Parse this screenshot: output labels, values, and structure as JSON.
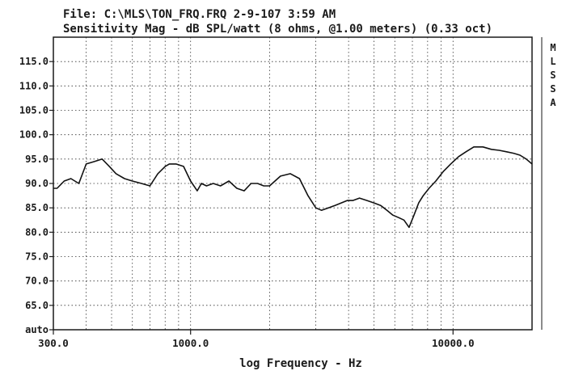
{
  "header": {
    "file_line": "File: C:\\MLS\\TON_FRQ.FRQ 2-9-107 3:59 AM",
    "title_line": "Sensitivity Mag - dB SPL/watt (8 ohms, @1.00 meters) (0.33 oct)"
  },
  "side_badge": [
    "M",
    "L",
    "S",
    "S",
    "A"
  ],
  "chart_data": {
    "type": "line",
    "title": "Sensitivity Mag - dB SPL/watt (8 ohms, @1.00 meters) (0.33 oct)",
    "xlabel": "log Frequency - Hz",
    "ylabel": "",
    "x_scale": "log",
    "xlim": [
      300,
      20000
    ],
    "ylim": [
      60,
      120
    ],
    "grid": true,
    "x_ticks": [
      {
        "value": 300,
        "label": "300.0"
      },
      {
        "value": 1000,
        "label": "1000.0"
      },
      {
        "value": 10000,
        "label": "10000.0"
      }
    ],
    "y_ticks": [
      {
        "value": 60,
        "label": "auto"
      },
      {
        "value": 65,
        "label": "65.0"
      },
      {
        "value": 70,
        "label": "70.0"
      },
      {
        "value": 75,
        "label": "75.0"
      },
      {
        "value": 80,
        "label": "80.0"
      },
      {
        "value": 85,
        "label": "85.0"
      },
      {
        "value": 90,
        "label": "90.0"
      },
      {
        "value": 95,
        "label": "95.0"
      },
      {
        "value": 100,
        "label": "100.0"
      },
      {
        "value": 105,
        "label": "105.0"
      },
      {
        "value": 110,
        "label": "110.0"
      },
      {
        "value": 115,
        "label": "115.0"
      }
    ],
    "series": [
      {
        "x": [
          300,
          310,
          330,
          350,
          375,
          400,
          430,
          460,
          490,
          520,
          560,
          600,
          650,
          700,
          750,
          800,
          830,
          880,
          940,
          1000,
          1060,
          1100,
          1150,
          1220,
          1300,
          1400,
          1500,
          1600,
          1700,
          1800,
          1900,
          2000,
          2200,
          2400,
          2600,
          2800,
          3000,
          3150,
          3350,
          3550,
          3750,
          3950,
          4150,
          4400,
          4700,
          5000,
          5300,
          5600,
          5900,
          6200,
          6500,
          6800,
          7100,
          7400,
          7700,
          8100,
          8600,
          9200,
          9800,
          10500,
          11200,
          12000,
          13000,
          14000,
          15000,
          16000,
          17000,
          18000,
          19000,
          20000
        ],
        "y": [
          89,
          89,
          90.5,
          91,
          90,
          94,
          94.5,
          95,
          93.5,
          92,
          91,
          90.5,
          90,
          89.5,
          92,
          93.5,
          94,
          94,
          93.5,
          90.5,
          88.5,
          90,
          89.5,
          90,
          89.5,
          90.5,
          89,
          88.5,
          90,
          90,
          89.5,
          89.5,
          91.5,
          92,
          91,
          87.5,
          85,
          84.5,
          85,
          85.5,
          86,
          86.5,
          86.5,
          87,
          86.5,
          86,
          85.5,
          84.5,
          83.5,
          83,
          82.5,
          81,
          83.5,
          86,
          87.5,
          89,
          90.5,
          92.5,
          94,
          95.5,
          96.5,
          97.5,
          97.5,
          97,
          96.8,
          96.5,
          96.2,
          95.8,
          95,
          94
        ]
      }
    ]
  }
}
